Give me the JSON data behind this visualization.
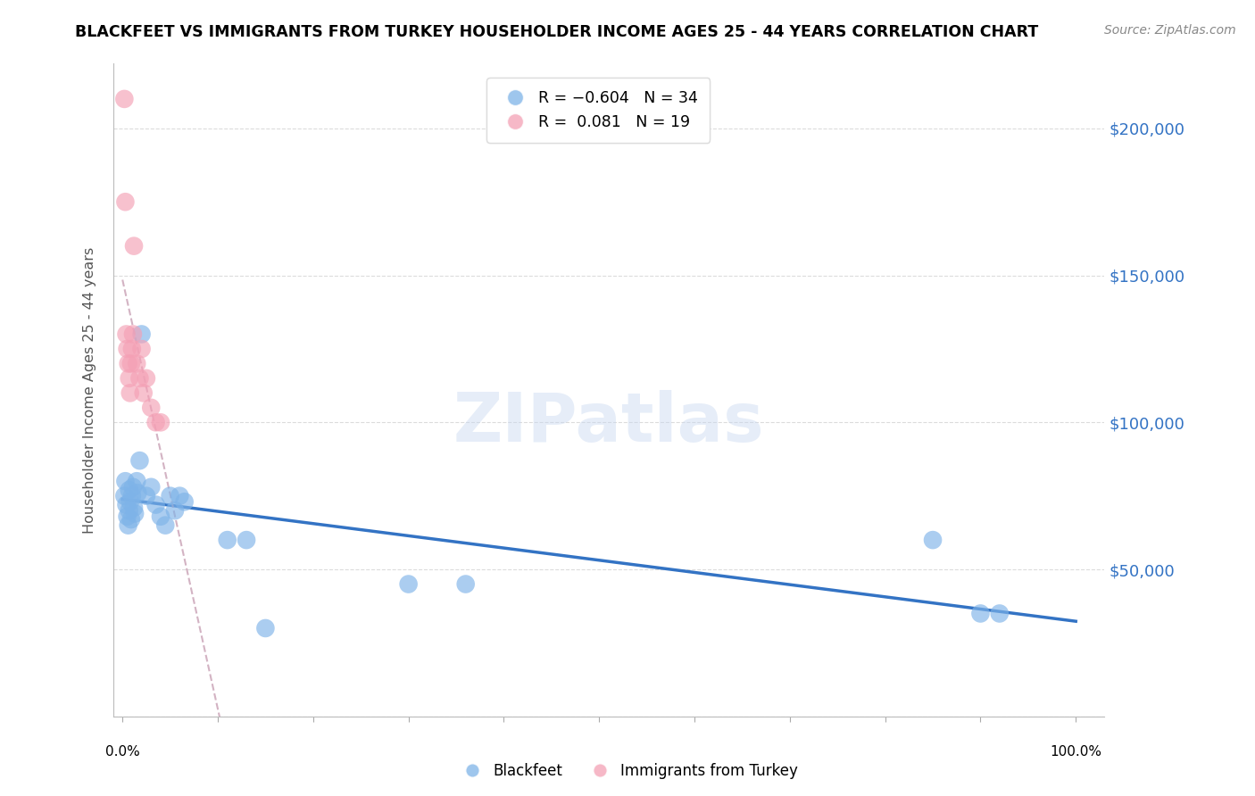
{
  "title": "BLACKFEET VS IMMIGRANTS FROM TURKEY HOUSEHOLDER INCOME AGES 25 - 44 YEARS CORRELATION CHART",
  "source": "Source: ZipAtlas.com",
  "ylabel": "Householder Income Ages 25 - 44 years",
  "watermark": "ZIPatlas",
  "blackfeet_color": "#7EB3E8",
  "turkey_color": "#F4A0B5",
  "blackfeet_line_color": "#3373C4",
  "turkey_line_color": "#C8A0B4",
  "yaxis_label_color": "#3373C4",
  "grid_color": "#cccccc",
  "blackfeet_x": [
    0.002,
    0.003,
    0.004,
    0.005,
    0.006,
    0.007,
    0.007,
    0.008,
    0.009,
    0.01,
    0.011,
    0.012,
    0.013,
    0.015,
    0.016,
    0.018,
    0.02,
    0.025,
    0.03,
    0.035,
    0.04,
    0.045,
    0.05,
    0.055,
    0.06,
    0.065,
    0.11,
    0.13,
    0.15,
    0.3,
    0.36,
    0.85,
    0.9,
    0.92
  ],
  "blackfeet_y": [
    75000,
    80000,
    72000,
    68000,
    65000,
    77000,
    70000,
    73000,
    67000,
    75000,
    78000,
    71000,
    69000,
    80000,
    76000,
    87000,
    130000,
    75000,
    78000,
    72000,
    68000,
    65000,
    75000,
    70000,
    75000,
    73000,
    60000,
    60000,
    30000,
    45000,
    45000,
    60000,
    35000,
    35000
  ],
  "turkey_x": [
    0.002,
    0.003,
    0.004,
    0.005,
    0.006,
    0.007,
    0.008,
    0.009,
    0.01,
    0.011,
    0.012,
    0.015,
    0.018,
    0.02,
    0.022,
    0.025,
    0.03,
    0.035,
    0.04
  ],
  "turkey_y": [
    210000,
    175000,
    130000,
    125000,
    120000,
    115000,
    110000,
    120000,
    125000,
    130000,
    160000,
    120000,
    115000,
    125000,
    110000,
    115000,
    105000,
    100000,
    100000
  ],
  "ylim": [
    0,
    222000
  ],
  "xlim": [
    -0.01,
    1.03
  ],
  "yticks": [
    0,
    50000,
    100000,
    150000,
    200000
  ],
  "ytick_labels": [
    "",
    "$50,000",
    "$100,000",
    "$150,000",
    "$200,000"
  ],
  "title_fontsize": 12.5,
  "source_fontsize": 10,
  "marker_size": 220
}
